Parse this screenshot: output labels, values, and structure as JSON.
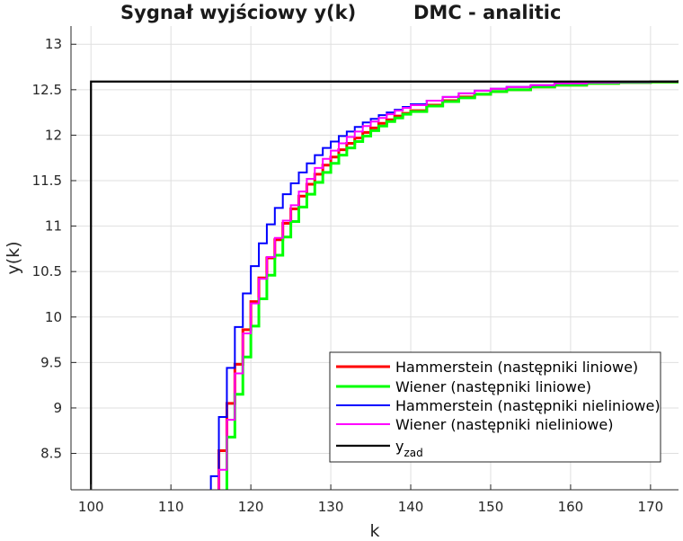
{
  "titles": {
    "left": "Sygnał wyjściowy y(k)",
    "right": "DMC - analitic"
  },
  "chart_data": {
    "type": "line",
    "title": "Sygnał wyjściowy y(k)   DMC - analitic",
    "xlabel": "k",
    "ylabel": "y(k)",
    "xlim": [
      97.5,
      173.5
    ],
    "ylim": [
      8.1,
      13.2
    ],
    "xticks": [
      100,
      110,
      120,
      130,
      140,
      150,
      160,
      170
    ],
    "yticks": [
      8.5,
      9,
      9.5,
      10,
      10.5,
      11,
      11.5,
      12,
      12.5,
      13
    ],
    "ytick_labels": [
      "8.5",
      "9",
      "9.5",
      "10",
      "10.5",
      "11",
      "11.5",
      "12",
      "12.5",
      "13"
    ],
    "grid": true,
    "legend_position": "bottom-right",
    "series": [
      {
        "name": "Hammerstein (następniki liniowe)",
        "color": "#ff0000",
        "style": "step",
        "x": [
          115,
          116,
          117,
          118,
          119,
          120,
          121,
          122,
          123,
          124,
          125,
          126,
          127,
          128,
          129,
          130,
          131,
          132,
          133,
          134,
          135,
          136,
          137,
          138,
          139,
          140,
          142,
          144,
          146,
          148,
          150,
          152,
          155,
          158,
          162,
          166,
          170,
          173.5
        ],
        "y": [
          7.9,
          8.53,
          9.05,
          9.48,
          9.86,
          10.17,
          10.43,
          10.65,
          10.85,
          11.03,
          11.19,
          11.33,
          11.46,
          11.57,
          11.67,
          11.76,
          11.84,
          11.91,
          11.97,
          12.03,
          12.08,
          12.13,
          12.17,
          12.21,
          12.24,
          12.27,
          12.33,
          12.38,
          12.42,
          12.45,
          12.48,
          12.5,
          12.53,
          12.55,
          12.57,
          12.58,
          12.585,
          12.59
        ]
      },
      {
        "name": "Wiener (następniki liniowe)",
        "color": "#00ff00",
        "style": "step",
        "x": [
          116,
          117,
          118,
          119,
          120,
          121,
          122,
          123,
          124,
          125,
          126,
          127,
          128,
          129,
          130,
          131,
          132,
          133,
          134,
          135,
          136,
          137,
          138,
          139,
          140,
          142,
          144,
          146,
          148,
          150,
          152,
          155,
          158,
          162,
          166,
          170,
          173.5
        ],
        "y": [
          7.9,
          8.68,
          9.15,
          9.56,
          9.9,
          10.2,
          10.46,
          10.68,
          10.88,
          11.05,
          11.21,
          11.35,
          11.48,
          11.59,
          11.69,
          11.78,
          11.86,
          11.93,
          11.99,
          12.05,
          12.1,
          12.15,
          12.19,
          12.23,
          12.26,
          12.32,
          12.37,
          12.41,
          12.45,
          12.48,
          12.5,
          12.53,
          12.55,
          12.57,
          12.58,
          12.585,
          12.59
        ]
      },
      {
        "name": "Hammerstein (następniki nieliniowe)",
        "color": "#0000ff",
        "style": "step",
        "x": [
          114.5,
          115,
          116,
          117,
          118,
          119,
          120,
          121,
          122,
          123,
          124,
          125,
          126,
          127,
          128,
          129,
          130,
          131,
          132,
          133,
          134,
          135,
          136,
          137,
          138,
          139,
          140,
          142,
          144,
          146,
          148,
          150,
          152,
          155,
          158,
          162,
          166,
          170,
          173.5
        ],
        "y": [
          7.9,
          8.25,
          8.9,
          9.44,
          9.89,
          10.26,
          10.56,
          10.81,
          11.02,
          11.2,
          11.35,
          11.47,
          11.59,
          11.69,
          11.78,
          11.86,
          11.93,
          11.99,
          12.04,
          12.09,
          12.14,
          12.18,
          12.22,
          12.25,
          12.28,
          12.31,
          12.34,
          12.38,
          12.42,
          12.46,
          12.49,
          12.51,
          12.53,
          12.55,
          12.57,
          12.58,
          12.585,
          12.588,
          12.59
        ]
      },
      {
        "name": "Wiener (następniki nieliniowe)",
        "color": "#ff00ff",
        "style": "step",
        "x": [
          115,
          116,
          117,
          118,
          119,
          120,
          121,
          122,
          123,
          124,
          125,
          126,
          127,
          128,
          129,
          130,
          131,
          132,
          133,
          134,
          135,
          136,
          137,
          138,
          139,
          140,
          142,
          144,
          146,
          148,
          150,
          152,
          155,
          158,
          162,
          166,
          170,
          173.5
        ],
        "y": [
          7.9,
          8.32,
          8.87,
          9.38,
          9.82,
          10.15,
          10.42,
          10.66,
          10.87,
          11.06,
          11.23,
          11.38,
          11.52,
          11.64,
          11.74,
          11.83,
          11.91,
          11.98,
          12.04,
          12.1,
          12.15,
          12.19,
          12.23,
          12.27,
          12.3,
          12.33,
          12.38,
          12.42,
          12.46,
          12.49,
          12.51,
          12.53,
          12.55,
          12.57,
          12.58,
          12.585,
          12.588,
          12.59
        ]
      },
      {
        "name": "y_zad",
        "legend_label": "y",
        "legend_subscript": "zad",
        "color": "#000000",
        "style": "step",
        "x": [
          100,
          173.5
        ],
        "y": [
          12.59,
          12.59
        ],
        "x_vertical": 100
      }
    ]
  }
}
